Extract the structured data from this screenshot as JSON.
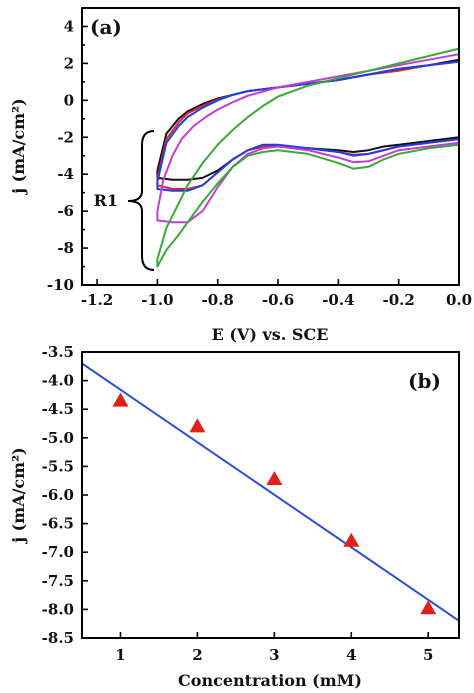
{
  "chart_data": [
    {
      "panel_label": "(a)",
      "type": "line",
      "xlabel": "E (V) vs. SCE",
      "ylabel": "j (mA/cm²)",
      "xlim": [
        -1.25,
        0.0
      ],
      "ylim": [
        -10,
        5
      ],
      "x_ticks": [
        -1.2,
        -1.0,
        -0.8,
        -0.6,
        -0.4,
        -0.2,
        0.0
      ],
      "x_tick_labels": [
        "-1.2",
        "-1.0",
        "-0.8",
        "-0.6",
        "-0.4",
        "-0.2",
        "0.0"
      ],
      "y_ticks": [
        -10,
        -8,
        -6,
        -4,
        -2,
        0,
        2,
        4
      ],
      "y_tick_labels": [
        "-10",
        "-8",
        "-6",
        "-4",
        "-2",
        "0",
        "2",
        "4"
      ],
      "annotation": "R1",
      "series": [
        {
          "color": "#111111",
          "reverse_x": [
            -1.0,
            -0.95,
            -0.9,
            -0.85,
            -0.8,
            -0.75,
            -0.7,
            -0.65,
            -0.6,
            -0.5,
            -0.4,
            -0.35,
            -0.3,
            -0.25,
            -0.2,
            -0.1,
            0.0
          ],
          "reverse_y": [
            -4.2,
            -4.3,
            -4.3,
            -4.2,
            -3.8,
            -3.2,
            -2.7,
            -2.5,
            -2.5,
            -2.6,
            -2.7,
            -2.8,
            -2.7,
            -2.5,
            -2.4,
            -2.2,
            -2.0
          ],
          "forward_x": [
            -1.0,
            -0.97,
            -0.93,
            -0.9,
            -0.85,
            -0.8,
            -0.75,
            -0.7,
            -0.6,
            -0.5,
            -0.4,
            -0.3,
            -0.2,
            -0.1,
            0.0
          ],
          "forward_y": [
            -3.8,
            -1.8,
            -1.0,
            -0.6,
            -0.2,
            0.1,
            0.3,
            0.5,
            0.7,
            0.9,
            1.1,
            1.4,
            1.7,
            1.9,
            2.2
          ]
        },
        {
          "color": "#e3262d",
          "reverse_x": [
            -1.0,
            -0.95,
            -0.9,
            -0.85,
            -0.8,
            -0.75,
            -0.7,
            -0.65,
            -0.6,
            -0.5,
            -0.4,
            -0.35,
            -0.3,
            -0.25,
            -0.2,
            -0.1,
            0.0
          ],
          "reverse_y": [
            -4.6,
            -4.8,
            -4.8,
            -4.6,
            -3.9,
            -3.2,
            -2.7,
            -2.5,
            -2.5,
            -2.6,
            -2.8,
            -2.95,
            -2.9,
            -2.7,
            -2.5,
            -2.3,
            -2.1
          ],
          "forward_x": [
            -1.0,
            -0.97,
            -0.93,
            -0.9,
            -0.85,
            -0.8,
            -0.75,
            -0.7,
            -0.6,
            -0.5,
            -0.4,
            -0.3,
            -0.2,
            -0.1,
            0.0
          ],
          "forward_y": [
            -4.2,
            -2.1,
            -1.2,
            -0.7,
            -0.3,
            0.05,
            0.3,
            0.5,
            0.7,
            0.9,
            1.1,
            1.4,
            1.6,
            1.9,
            2.1
          ]
        },
        {
          "color": "#1f3ee6",
          "reverse_x": [
            -1.0,
            -0.95,
            -0.9,
            -0.85,
            -0.8,
            -0.75,
            -0.7,
            -0.65,
            -0.6,
            -0.5,
            -0.4,
            -0.35,
            -0.3,
            -0.25,
            -0.2,
            -0.1,
            0.0
          ],
          "reverse_y": [
            -4.8,
            -4.9,
            -4.9,
            -4.6,
            -3.9,
            -3.2,
            -2.7,
            -2.4,
            -2.4,
            -2.6,
            -2.8,
            -3.0,
            -2.9,
            -2.7,
            -2.5,
            -2.3,
            -2.1
          ],
          "forward_x": [
            -1.0,
            -0.97,
            -0.93,
            -0.9,
            -0.85,
            -0.8,
            -0.75,
            -0.7,
            -0.6,
            -0.5,
            -0.4,
            -0.3,
            -0.2,
            -0.1,
            0.0
          ],
          "forward_y": [
            -4.4,
            -2.3,
            -1.4,
            -0.9,
            -0.4,
            0.0,
            0.3,
            0.5,
            0.7,
            0.9,
            1.1,
            1.4,
            1.7,
            1.9,
            2.1
          ]
        },
        {
          "color": "#c43bd6",
          "reverse_x": [
            -1.0,
            -0.95,
            -0.9,
            -0.85,
            -0.8,
            -0.75,
            -0.7,
            -0.65,
            -0.6,
            -0.5,
            -0.4,
            -0.35,
            -0.3,
            -0.25,
            -0.2,
            -0.1,
            0.0
          ],
          "reverse_y": [
            -6.5,
            -6.6,
            -6.6,
            -6.0,
            -4.7,
            -3.6,
            -2.9,
            -2.6,
            -2.5,
            -2.7,
            -3.1,
            -3.35,
            -3.3,
            -3.0,
            -2.7,
            -2.5,
            -2.3
          ],
          "forward_x": [
            -1.0,
            -0.98,
            -0.95,
            -0.92,
            -0.88,
            -0.84,
            -0.8,
            -0.75,
            -0.7,
            -0.6,
            -0.5,
            -0.4,
            -0.3,
            -0.2,
            -0.1,
            0.0
          ],
          "forward_y": [
            -6.0,
            -4.3,
            -3.0,
            -2.1,
            -1.4,
            -0.9,
            -0.5,
            -0.1,
            0.25,
            0.7,
            1.0,
            1.3,
            1.6,
            1.9,
            2.2,
            2.5
          ]
        },
        {
          "color": "#3aa83a",
          "reverse_x": [
            -1.0,
            -0.97,
            -0.93,
            -0.9,
            -0.85,
            -0.8,
            -0.75,
            -0.7,
            -0.65,
            -0.6,
            -0.5,
            -0.4,
            -0.35,
            -0.3,
            -0.25,
            -0.2,
            -0.1,
            0.0
          ],
          "reverse_y": [
            -9.0,
            -8.1,
            -7.3,
            -6.6,
            -5.5,
            -4.5,
            -3.6,
            -3.0,
            -2.8,
            -2.7,
            -2.9,
            -3.4,
            -3.7,
            -3.6,
            -3.2,
            -2.9,
            -2.6,
            -2.4
          ],
          "forward_x": [
            -1.0,
            -0.97,
            -0.93,
            -0.9,
            -0.85,
            -0.8,
            -0.75,
            -0.7,
            -0.65,
            -0.6,
            -0.5,
            -0.4,
            -0.3,
            -0.2,
            -0.1,
            0.0
          ],
          "forward_y": [
            -8.6,
            -6.9,
            -5.6,
            -4.6,
            -3.4,
            -2.4,
            -1.6,
            -0.9,
            -0.3,
            0.2,
            0.8,
            1.2,
            1.6,
            2.0,
            2.4,
            2.8
          ]
        }
      ]
    },
    {
      "panel_label": "(b)",
      "type": "scatter",
      "xlabel": "Concentration (mM)",
      "ylabel": "j (mA/cm²)",
      "xlim": [
        0.5,
        5.4
      ],
      "ylim": [
        -8.5,
        -3.5
      ],
      "x_ticks": [
        1,
        2,
        3,
        4,
        5
      ],
      "x_tick_labels": [
        "1",
        "2",
        "3",
        "4",
        "5"
      ],
      "y_ticks": [
        -8.5,
        -8.0,
        -7.5,
        -7.0,
        -6.5,
        -6.0,
        -5.5,
        -5.0,
        -4.5,
        -4.0,
        -3.5
      ],
      "y_tick_labels": [
        "-8.5",
        "-8.0",
        "-7.5",
        "-7.0",
        "-6.5",
        "-6.0",
        "-5.5",
        "-5.0",
        "-4.5",
        "-4.0",
        "-3.5"
      ],
      "points": [
        {
          "x": 1,
          "y": -4.35
        },
        {
          "x": 2,
          "y": -4.8
        },
        {
          "x": 3,
          "y": -5.72
        },
        {
          "x": 4,
          "y": -6.8
        },
        {
          "x": 5,
          "y": -7.98
        }
      ],
      "marker_color": "#e0201a",
      "fit": {
        "x": [
          0.5,
          5.4
        ],
        "y": [
          -3.7,
          -8.2
        ],
        "color": "#2a4fd6"
      }
    }
  ]
}
